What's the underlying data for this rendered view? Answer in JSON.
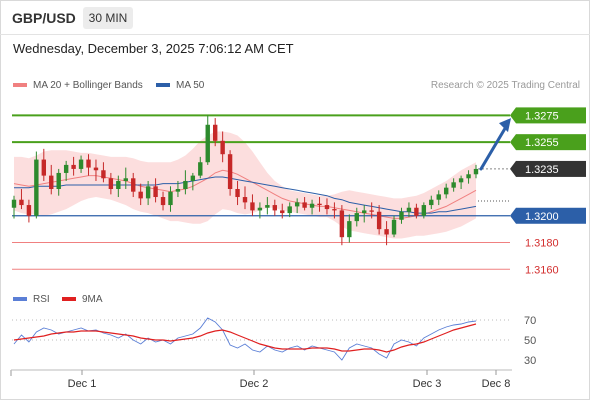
{
  "header": {
    "pair": "GBP/USD",
    "timeframe": "30 MIN"
  },
  "datetime": "Wednesday, December 3, 2025 7:06:12 AM CET",
  "credit": "Research © 2025 Trading Central",
  "legend": {
    "ma20": {
      "label": "MA 20 + Bollinger Bands",
      "color": "#f08080"
    },
    "ma50": {
      "label": "MA 50",
      "color": "#2c5fa8"
    }
  },
  "rsi_legend": {
    "rsi": {
      "label": "RSI",
      "color": "#5b7fd6"
    },
    "ma9": {
      "label": "9MA",
      "color": "#e02020"
    }
  },
  "colors": {
    "up": "#2d8a2d",
    "down": "#c62828",
    "resistance": "#4aa01c",
    "support": "#2c5fa8",
    "target": "#f08080",
    "arrow": "#2c5fa8"
  },
  "chart_data": [
    {
      "type": "candlestick",
      "ylim": [
        1.3152,
        1.3288
      ],
      "x_ticks": [
        "Dec 1",
        "Dec 2",
        "Dec 3",
        "Dec 8"
      ],
      "levels": [
        {
          "label": "1.3275",
          "value": 1.3275,
          "kind": "resistance"
        },
        {
          "label": "1.3255",
          "value": 1.3255,
          "kind": "resistance"
        },
        {
          "label": "1.3235",
          "value": 1.3235,
          "kind": "last"
        },
        {
          "label": "1.3200",
          "value": 1.32,
          "kind": "support"
        },
        {
          "label": "1.3180",
          "value": 1.318,
          "kind": "target"
        },
        {
          "label": "1.3160",
          "value": 1.316,
          "kind": "target"
        }
      ],
      "last_price": 1.3235,
      "forecast": {
        "from": 1.3235,
        "to": 1.3273
      },
      "candles": [
        [
          1.3206,
          1.3215,
          1.3198,
          1.3212
        ],
        [
          1.3212,
          1.322,
          1.3205,
          1.3208
        ],
        [
          1.3208,
          1.3212,
          1.3195,
          1.32
        ],
        [
          1.32,
          1.3248,
          1.3198,
          1.3242
        ],
        [
          1.3242,
          1.325,
          1.3226,
          1.323
        ],
        [
          1.323,
          1.3238,
          1.3216,
          1.322
        ],
        [
          1.322,
          1.3235,
          1.3215,
          1.3232
        ],
        [
          1.3232,
          1.3241,
          1.3226,
          1.3238
        ],
        [
          1.3238,
          1.3244,
          1.323,
          1.3235
        ],
        [
          1.3235,
          1.3245,
          1.3232,
          1.3242
        ],
        [
          1.3242,
          1.3246,
          1.323,
          1.3236
        ],
        [
          1.3236,
          1.3242,
          1.3226,
          1.3234
        ],
        [
          1.3234,
          1.324,
          1.3225,
          1.3228
        ],
        [
          1.3228,
          1.3232,
          1.3216,
          1.322
        ],
        [
          1.322,
          1.323,
          1.3214,
          1.3226
        ],
        [
          1.3226,
          1.3236,
          1.322,
          1.3228
        ],
        [
          1.3228,
          1.3232,
          1.3214,
          1.3218
        ],
        [
          1.3218,
          1.3224,
          1.3208,
          1.3213
        ],
        [
          1.3213,
          1.3226,
          1.3208,
          1.3222
        ],
        [
          1.3222,
          1.3228,
          1.321,
          1.3214
        ],
        [
          1.3214,
          1.3218,
          1.3204,
          1.3208
        ],
        [
          1.3208,
          1.3222,
          1.3203,
          1.3218
        ],
        [
          1.3218,
          1.3226,
          1.3214,
          1.322
        ],
        [
          1.322,
          1.3234,
          1.3216,
          1.3226
        ],
        [
          1.3226,
          1.3232,
          1.3219,
          1.323
        ],
        [
          1.323,
          1.3244,
          1.3228,
          1.324
        ],
        [
          1.324,
          1.3275,
          1.3238,
          1.3268
        ],
        [
          1.3268,
          1.3273,
          1.3252,
          1.3256
        ],
        [
          1.3256,
          1.3263,
          1.324,
          1.3246
        ],
        [
          1.3246,
          1.3249,
          1.3215,
          1.322
        ],
        [
          1.322,
          1.3226,
          1.3208,
          1.3214
        ],
        [
          1.3214,
          1.3222,
          1.3205,
          1.321
        ],
        [
          1.321,
          1.3216,
          1.32,
          1.3204
        ],
        [
          1.3204,
          1.321,
          1.3198,
          1.3206
        ],
        [
          1.3206,
          1.3214,
          1.3201,
          1.3208
        ],
        [
          1.3208,
          1.3212,
          1.32,
          1.3204
        ],
        [
          1.3204,
          1.3209,
          1.3198,
          1.3202
        ],
        [
          1.3202,
          1.321,
          1.3199,
          1.3207
        ],
        [
          1.3207,
          1.3213,
          1.3202,
          1.321
        ],
        [
          1.321,
          1.3214,
          1.3204,
          1.3206
        ],
        [
          1.3206,
          1.3212,
          1.3201,
          1.3209
        ],
        [
          1.3209,
          1.3214,
          1.3203,
          1.3208
        ],
        [
          1.3208,
          1.3213,
          1.3201,
          1.3205
        ],
        [
          1.3205,
          1.321,
          1.3198,
          1.3204
        ],
        [
          1.3204,
          1.3208,
          1.3178,
          1.3184
        ],
        [
          1.3184,
          1.3201,
          1.318,
          1.3196
        ],
        [
          1.3196,
          1.3206,
          1.3192,
          1.3202
        ],
        [
          1.3202,
          1.3208,
          1.3195,
          1.3204
        ],
        [
          1.3204,
          1.321,
          1.3198,
          1.3203
        ],
        [
          1.3203,
          1.3208,
          1.3186,
          1.319
        ],
        [
          1.319,
          1.3196,
          1.3178,
          1.3186
        ],
        [
          1.3186,
          1.32,
          1.3184,
          1.3197
        ],
        [
          1.3197,
          1.3206,
          1.3194,
          1.3203
        ],
        [
          1.3203,
          1.321,
          1.3199,
          1.3206
        ],
        [
          1.3206,
          1.3209,
          1.3198,
          1.32
        ],
        [
          1.32,
          1.321,
          1.3198,
          1.3208
        ],
        [
          1.3208,
          1.3215,
          1.3205,
          1.3212
        ],
        [
          1.3212,
          1.3219,
          1.3208,
          1.3216
        ],
        [
          1.3216,
          1.3224,
          1.3213,
          1.3221
        ],
        [
          1.3221,
          1.3228,
          1.3218,
          1.3225
        ],
        [
          1.3225,
          1.323,
          1.322,
          1.3228
        ],
        [
          1.3228,
          1.3234,
          1.3224,
          1.3231
        ],
        [
          1.3231,
          1.3238,
          1.3228,
          1.3235
        ]
      ],
      "ma20": [
        1.3224,
        1.3223,
        1.3222,
        1.3223,
        1.3224,
        1.3225,
        1.3226,
        1.3227,
        1.3228,
        1.3229,
        1.323,
        1.323,
        1.3229,
        1.3228,
        1.3227,
        1.3226,
        1.3224,
        1.3222,
        1.3221,
        1.322,
        1.3219,
        1.3218,
        1.3219,
        1.322,
        1.3222,
        1.3225,
        1.3228,
        1.3232,
        1.3234,
        1.3233,
        1.3231,
        1.3228,
        1.3225,
        1.3222,
        1.3219,
        1.3216,
        1.3213,
        1.3211,
        1.321,
        1.3209,
        1.3208,
        1.3207,
        1.3207,
        1.3206,
        1.3205,
        1.3204,
        1.3203,
        1.3202,
        1.3201,
        1.32,
        1.3199,
        1.3198,
        1.3198,
        1.3199,
        1.32,
        1.3201,
        1.3203,
        1.3205,
        1.3207,
        1.321,
        1.3213,
        1.3216,
        1.3219
      ],
      "bb_upper": [
        1.3244,
        1.3244,
        1.3243,
        1.3245,
        1.3248,
        1.3249,
        1.3249,
        1.3249,
        1.3248,
        1.3247,
        1.3247,
        1.3246,
        1.3245,
        1.3244,
        1.3244,
        1.3244,
        1.3243,
        1.3241,
        1.324,
        1.324,
        1.324,
        1.324,
        1.3242,
        1.3245,
        1.325,
        1.3256,
        1.326,
        1.3263,
        1.3263,
        1.3262,
        1.326,
        1.3255,
        1.3248,
        1.324,
        1.3232,
        1.3226,
        1.3222,
        1.3219,
        1.3218,
        1.3217,
        1.3216,
        1.3215,
        1.3215,
        1.3216,
        1.3218,
        1.3219,
        1.3218,
        1.3217,
        1.3216,
        1.3215,
        1.3214,
        1.3213,
        1.3213,
        1.3214,
        1.3215,
        1.3217,
        1.322,
        1.3223,
        1.3226,
        1.323,
        1.3234,
        1.3237,
        1.324
      ],
      "bb_lower": [
        1.3204,
        1.3202,
        1.3201,
        1.3201,
        1.32,
        1.3201,
        1.3203,
        1.3205,
        1.3208,
        1.3211,
        1.3213,
        1.3214,
        1.3213,
        1.3212,
        1.321,
        1.3208,
        1.3205,
        1.3203,
        1.3202,
        1.32,
        1.3198,
        1.3196,
        1.3196,
        1.3195,
        1.3194,
        1.3194,
        1.3196,
        1.3201,
        1.3205,
        1.3204,
        1.3202,
        1.3201,
        1.3202,
        1.3204,
        1.3206,
        1.3206,
        1.3204,
        1.3203,
        1.3202,
        1.3201,
        1.32,
        1.3199,
        1.3199,
        1.3196,
        1.3192,
        1.3189,
        1.3188,
        1.3187,
        1.3186,
        1.3185,
        1.3184,
        1.3183,
        1.3183,
        1.3184,
        1.3185,
        1.3185,
        1.3186,
        1.3187,
        1.3188,
        1.319,
        1.3192,
        1.3195,
        1.3198
      ],
      "ma50": [
        1.3221,
        1.3221,
        1.3221,
        1.3222,
        1.3222,
        1.3222,
        1.3222,
        1.3223,
        1.3223,
        1.3223,
        1.3223,
        1.3223,
        1.3223,
        1.3223,
        1.3223,
        1.3223,
        1.3223,
        1.3223,
        1.3223,
        1.3223,
        1.3224,
        1.3224,
        1.3224,
        1.3225,
        1.3226,
        1.3227,
        1.3228,
        1.3229,
        1.3229,
        1.3228,
        1.3227,
        1.3226,
        1.3225,
        1.3224,
        1.3223,
        1.3222,
        1.3221,
        1.322,
        1.3219,
        1.3218,
        1.3217,
        1.3216,
        1.3215,
        1.3213,
        1.3212,
        1.321,
        1.3209,
        1.3208,
        1.3207,
        1.3206,
        1.3205,
        1.3204,
        1.3203,
        1.3203,
        1.3202,
        1.3202,
        1.3202,
        1.3203,
        1.3203,
        1.3204,
        1.3205,
        1.3206,
        1.3207
      ]
    },
    {
      "type": "line",
      "ylim": [
        22,
        78
      ],
      "y_ticks": [
        70,
        50,
        30
      ],
      "series": [
        {
          "name": "RSI",
          "color": "#5b7fd6",
          "values": [
            46,
            55,
            48,
            58,
            62,
            60,
            56,
            58,
            60,
            62,
            59,
            60,
            57,
            55,
            52,
            56,
            50,
            46,
            52,
            48,
            50,
            46,
            52,
            54,
            56,
            62,
            72,
            68,
            60,
            45,
            42,
            46,
            40,
            38,
            44,
            40,
            38,
            42,
            44,
            40,
            44,
            42,
            40,
            38,
            30,
            42,
            46,
            44,
            42,
            36,
            32,
            46,
            50,
            48,
            44,
            52,
            56,
            60,
            63,
            65,
            66,
            68,
            69
          ]
        },
        {
          "name": "9MA",
          "color": "#e02020",
          "values": [
            50,
            51,
            52,
            53,
            54,
            56,
            57,
            58,
            58,
            59,
            59,
            59,
            58,
            57,
            56,
            55,
            54,
            52,
            51,
            50,
            50,
            49,
            50,
            51,
            52,
            54,
            57,
            59,
            60,
            58,
            55,
            52,
            49,
            46,
            44,
            42,
            41,
            41,
            41,
            41,
            42,
            42,
            42,
            41,
            39,
            39,
            40,
            41,
            41,
            40,
            38,
            40,
            43,
            45,
            46,
            48,
            51,
            54,
            57,
            60,
            62,
            64,
            66
          ]
        }
      ]
    }
  ]
}
